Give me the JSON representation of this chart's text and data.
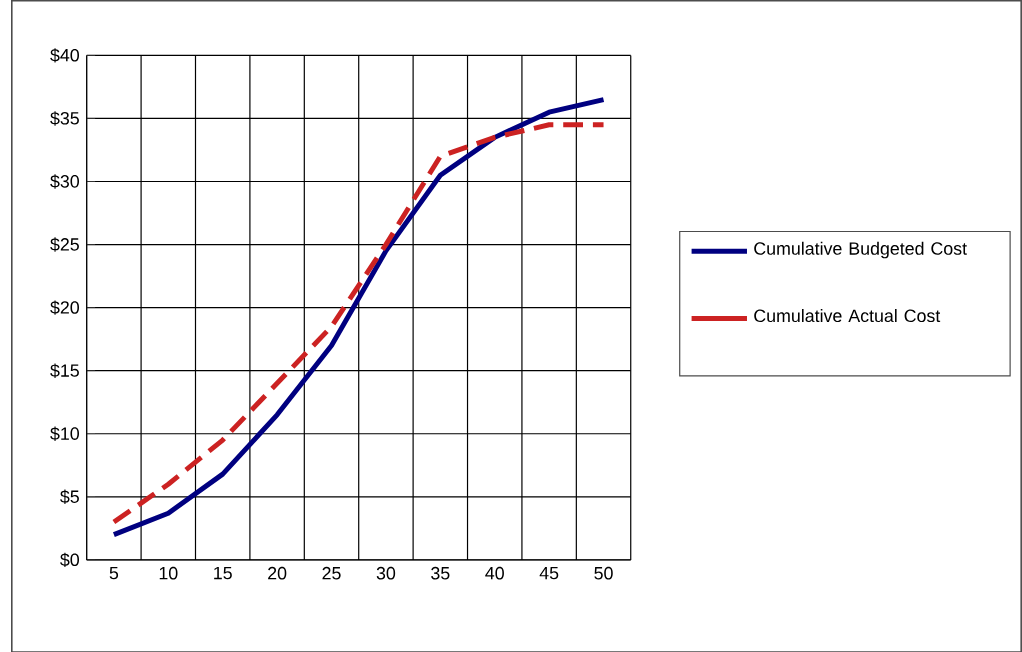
{
  "chart_data": {
    "type": "line",
    "categories": [
      "5",
      "10",
      "15",
      "20",
      "25",
      "30",
      "35",
      "40",
      "45",
      "50"
    ],
    "series": [
      {
        "name": "Cumulative Budgeted Cost",
        "color": "#000080",
        "line_style": "solid",
        "values": [
          2,
          3.7,
          6.8,
          11.5,
          17,
          24.5,
          30.5,
          33.5,
          35.5,
          36.5
        ]
      },
      {
        "name": "Cumulative Actual Cost",
        "color": "#cc2222",
        "line_style": "dashed",
        "values": [
          3,
          6,
          9.5,
          14,
          18.5,
          25,
          32,
          33.5,
          34.5,
          34.5
        ]
      }
    ],
    "ylim": [
      0,
      40
    ],
    "yticks": [
      {
        "value": 0,
        "label": "$0"
      },
      {
        "value": 5,
        "label": "$5"
      },
      {
        "value": 10,
        "label": "$10"
      },
      {
        "value": 15,
        "label": "$15"
      },
      {
        "value": 20,
        "label": "$20"
      },
      {
        "value": 25,
        "label": "$25"
      },
      {
        "value": 30,
        "label": "$30"
      },
      {
        "value": 35,
        "label": "$35"
      },
      {
        "value": 40,
        "label": "$40"
      }
    ],
    "grid": true,
    "legend": "right",
    "marker": "none"
  }
}
